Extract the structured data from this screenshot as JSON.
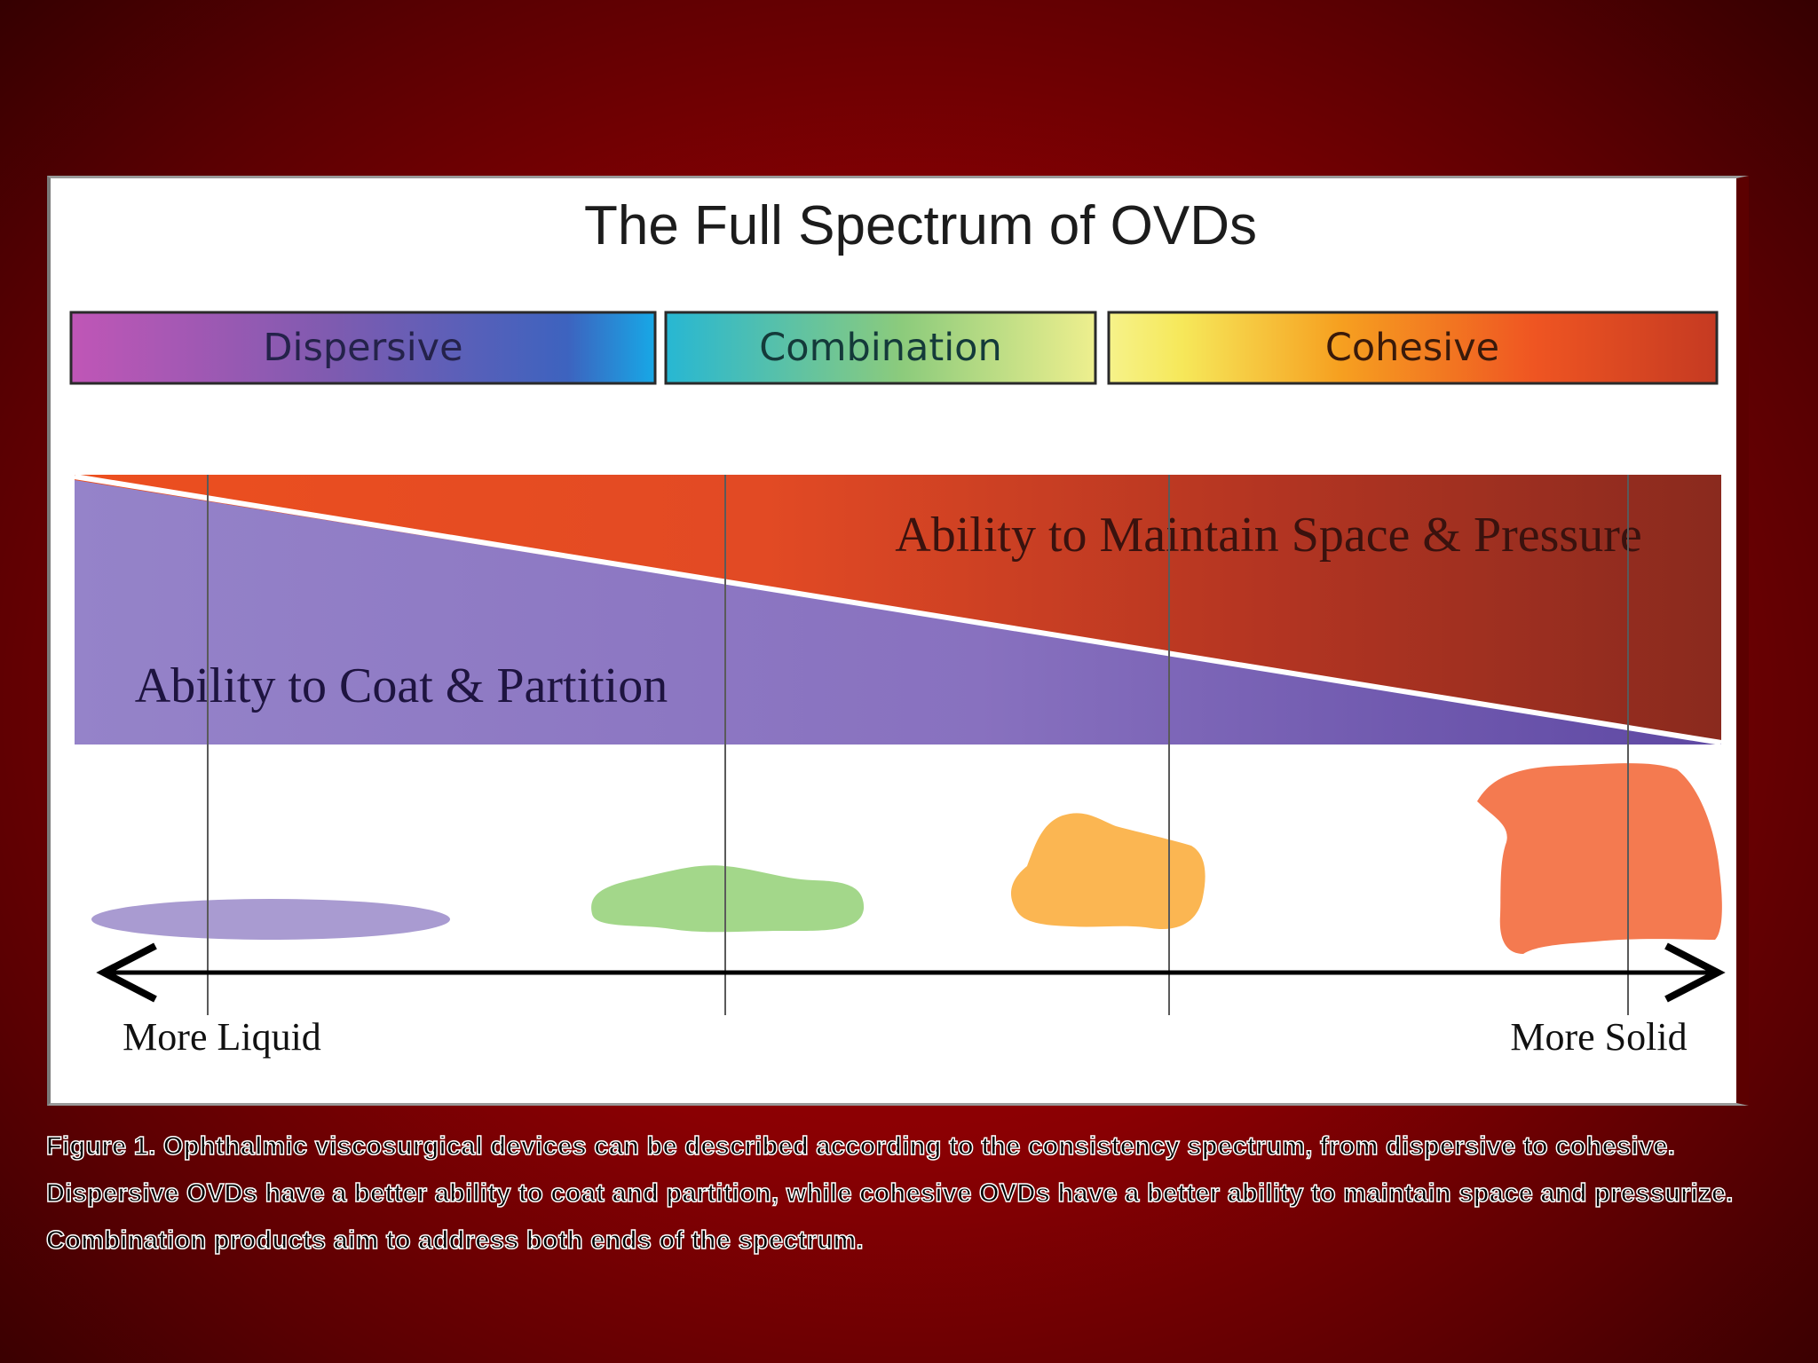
{
  "title": "The Full Spectrum of OVDs",
  "categories": [
    {
      "label": "Dispersive"
    },
    {
      "label": "Combination"
    },
    {
      "label": "Cohesive"
    }
  ],
  "regions": {
    "upper_label": "Ability to Maintain Space & Pressure",
    "lower_label": "Ability to Coat & Partition"
  },
  "axis": {
    "left_label": "More Liquid",
    "right_label": "More Solid"
  },
  "blobs": [
    {
      "name": "liquid-blob",
      "color": "#a99bd1"
    },
    {
      "name": "combination-blob",
      "color": "#a3d78a"
    },
    {
      "name": "cohesive-blob",
      "color": "#fbb652"
    },
    {
      "name": "solid-blob",
      "color": "#f47a50"
    }
  ],
  "colors": {
    "background": "#8a0003",
    "coat_partition": "#8b76c4",
    "maintain_space": "#e9532a"
  },
  "caption": "Figure 1. Ophthalmic viscosurgical devices can be described according to the consistency spectrum, from dispersive to cohesive. Dispersive OVDs have a better ability to coat and partition, while cohesive OVDs have a better ability to maintain space and pressurize. Combination products aim to address both ends of the spectrum."
}
